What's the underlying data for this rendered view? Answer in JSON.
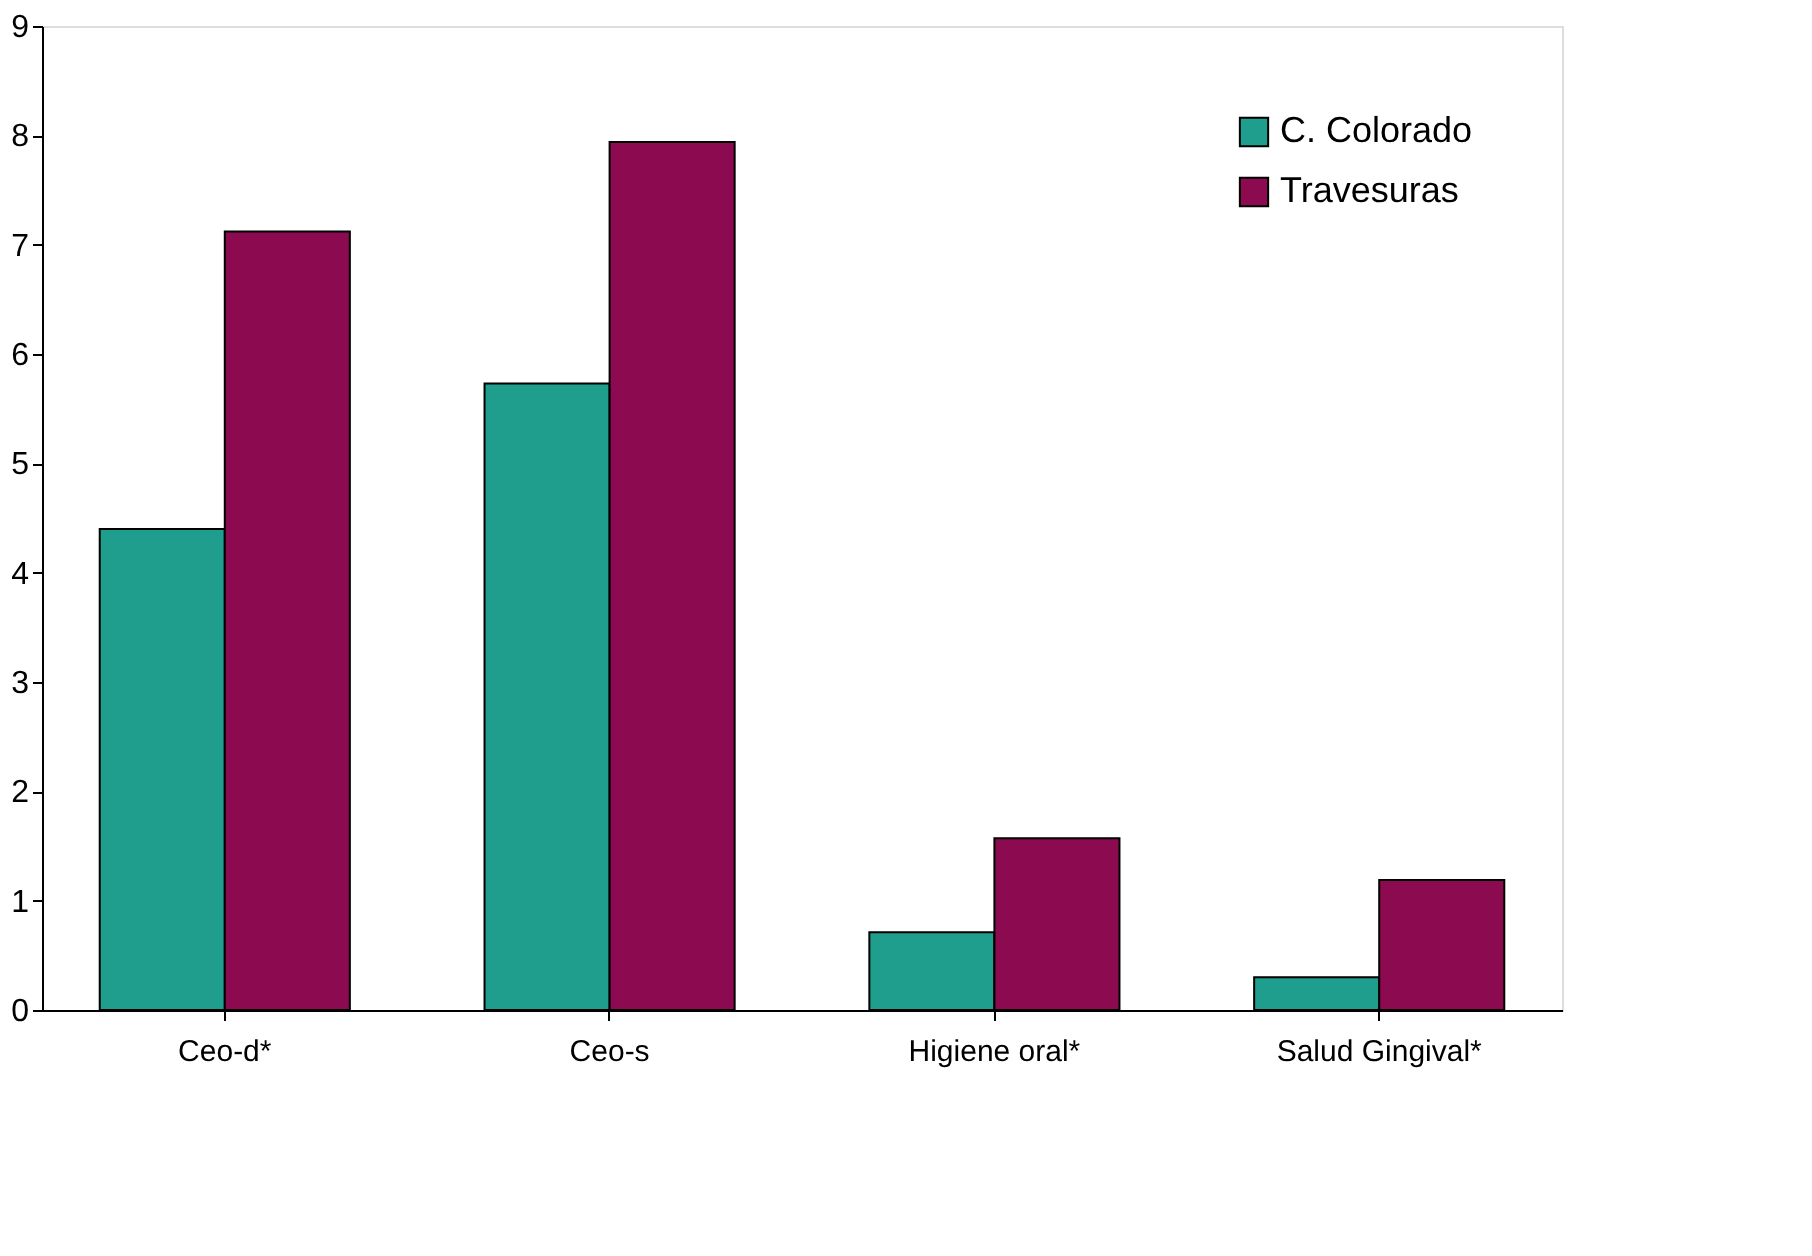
{
  "chart_data": {
    "type": "bar",
    "categories": [
      "Ceo-d*",
      "Ceo-s",
      "Higiene oral*",
      "Salud Gingival*"
    ],
    "series": [
      {
        "name": "C. Colorado",
        "color": "#1f9e8e",
        "values": [
          4.4,
          5.73,
          0.71,
          0.3
        ]
      },
      {
        "name": "Travesuras",
        "color": "#8b0a50",
        "values": [
          7.12,
          7.94,
          1.57,
          1.19
        ]
      }
    ],
    "ylim": [
      0,
      9
    ],
    "yticks": [
      0,
      1,
      2,
      3,
      4,
      5,
      6,
      7,
      8,
      9
    ],
    "grid": false,
    "legend": "top right"
  }
}
